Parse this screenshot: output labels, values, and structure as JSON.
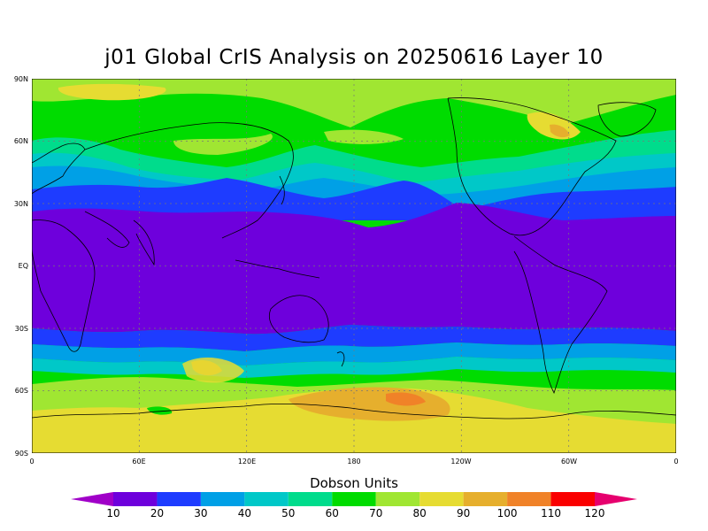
{
  "title": "j01 Global CrIS Analysis on 20250616 Layer 10",
  "lat_ticks": [
    "90N",
    "60N",
    "30N",
    "EQ",
    "30S",
    "60S",
    "90S"
  ],
  "lon_ticks": [
    "0",
    "60E",
    "120E",
    "180",
    "120W",
    "60W",
    "0"
  ],
  "colorbar": {
    "title": "Dobson Units",
    "labels": [
      "10",
      "20",
      "30",
      "40",
      "50",
      "60",
      "70",
      "80",
      "90",
      "100",
      "110",
      "120"
    ],
    "colors": [
      "#a000c8",
      "#6e00dc",
      "#1e3cff",
      "#00a0e6",
      "#00c8c8",
      "#00dc8c",
      "#00dc00",
      "#a0e632",
      "#e6dc32",
      "#e6af2d",
      "#f08228",
      "#fa0000",
      "#e6006e"
    ]
  },
  "colors": {
    "band_10_20": "#6e00dc",
    "band_20_30": "#1e3cff",
    "band_30_40": "#00a0e6",
    "band_40_50": "#00c8c8",
    "band_50_60": "#00dc8c",
    "band_60_70": "#00dc00",
    "band_70_80": "#a0e632",
    "band_80_90": "#e6dc32",
    "band_90_100": "#e6af2d",
    "band_100_110": "#f08228"
  }
}
